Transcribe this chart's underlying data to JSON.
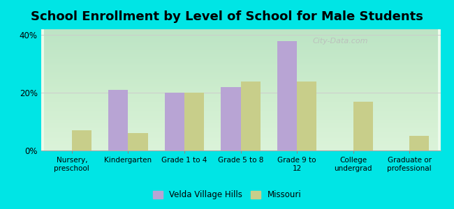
{
  "title": "School Enrollment by Level of School for Male Students",
  "categories": [
    "Nursery,\npreschool",
    "Kindergarten",
    "Grade 1 to 4",
    "Grade 5 to 8",
    "Grade 9 to\n12",
    "College\nundergrad",
    "Graduate or\nprofessional"
  ],
  "velda_values": [
    0,
    21,
    20,
    22,
    38,
    0,
    0
  ],
  "missouri_values": [
    7,
    6,
    20,
    24,
    24,
    17,
    5
  ],
  "velda_color": "#b8a4d4",
  "missouri_color": "#c8ce8a",
  "bar_width": 0.35,
  "ylim": [
    0,
    42
  ],
  "yticks": [
    0,
    20,
    40
  ],
  "ytick_labels": [
    "0%",
    "20%",
    "40%"
  ],
  "bg_top": "#f0fff0",
  "bg_bottom": "#d0f0d0",
  "outer_background": "#00e5e5",
  "title_fontsize": 13,
  "legend_labels": [
    "Velda Village Hills",
    "Missouri"
  ],
  "grid_color": "#cccccc",
  "watermark": "City-Data.com"
}
